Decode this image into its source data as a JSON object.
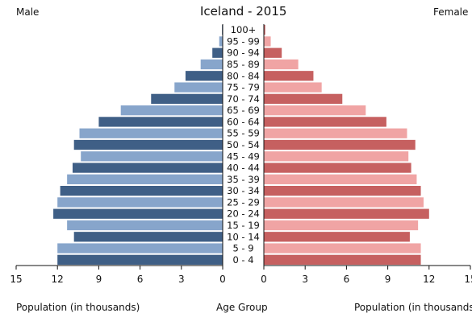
{
  "chart_data": {
    "type": "bar",
    "title": "Iceland - 2015",
    "left_label": "Male",
    "right_label": "Female",
    "xlabel_left": "Population (in thousands)",
    "xlabel_center": "Age Group",
    "xlabel_right": "Population (in thousands)",
    "categories": [
      "100+",
      "95 - 99",
      "90 - 94",
      "85 - 89",
      "80 - 84",
      "75 - 79",
      "70 - 74",
      "65 - 69",
      "60 - 64",
      "55 - 59",
      "50 - 54",
      "45 - 49",
      "40 - 44",
      "35 - 39",
      "30 - 34",
      "25 - 29",
      "20 - 24",
      "15 - 19",
      "10 - 14",
      "5 - 9",
      "0 - 4"
    ],
    "series": [
      {
        "name": "Male",
        "color_dark": "#3f5f86",
        "color_light": "#87a5cb",
        "values": [
          0.05,
          0.25,
          0.75,
          1.6,
          2.7,
          3.5,
          5.2,
          7.4,
          9.0,
          10.4,
          10.8,
          10.3,
          10.9,
          11.3,
          11.8,
          12.0,
          12.3,
          11.3,
          10.8,
          12.0,
          12.0
        ]
      },
      {
        "name": "Female",
        "color_dark": "#c66060",
        "color_light": "#f0a4a4",
        "values": [
          0.1,
          0.5,
          1.3,
          2.5,
          3.6,
          4.2,
          5.7,
          7.4,
          8.9,
          10.4,
          11.0,
          10.5,
          10.7,
          11.1,
          11.4,
          11.6,
          12.0,
          11.2,
          10.6,
          11.4,
          11.4
        ]
      }
    ],
    "xticks": [
      "15",
      "12",
      "9",
      "6",
      "3",
      "0"
    ],
    "xlim": [
      0,
      15
    ],
    "grid": false
  }
}
